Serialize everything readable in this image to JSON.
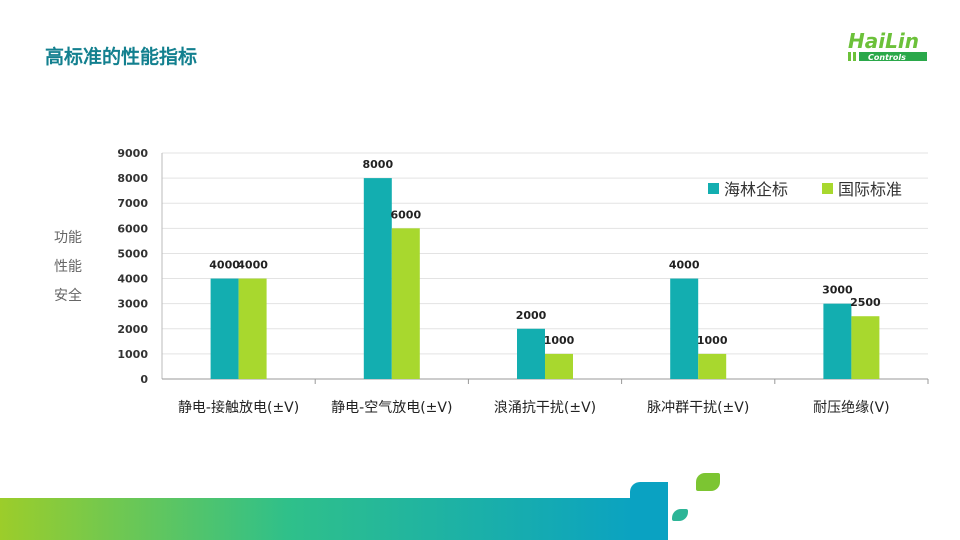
{
  "header": {
    "title": "高标准的性能指标",
    "logo_text": "HaiLin Controls"
  },
  "y_side_label": [
    "功能",
    "性能",
    "安全"
  ],
  "colors": {
    "teal": "#13aeb0",
    "green": "#a8d82e"
  },
  "chart_data": {
    "type": "bar",
    "categories": [
      "静电-接触放电(±V)",
      "静电-空气放电(±V)",
      "浪涌抗干扰(±V)",
      "脉冲群干扰(±V)",
      "耐压绝缘(V)"
    ],
    "series": [
      {
        "name": "海林企标",
        "values": [
          4000,
          8000,
          2000,
          4000,
          3000
        ]
      },
      {
        "name": "国际标准",
        "values": [
          4000,
          6000,
          1000,
          1000,
          2500
        ]
      }
    ],
    "ylim": [
      0,
      9000
    ],
    "yticks": [
      0,
      1000,
      2000,
      3000,
      4000,
      5000,
      6000,
      7000,
      8000,
      9000
    ],
    "grid": true,
    "legend": "top-right"
  }
}
